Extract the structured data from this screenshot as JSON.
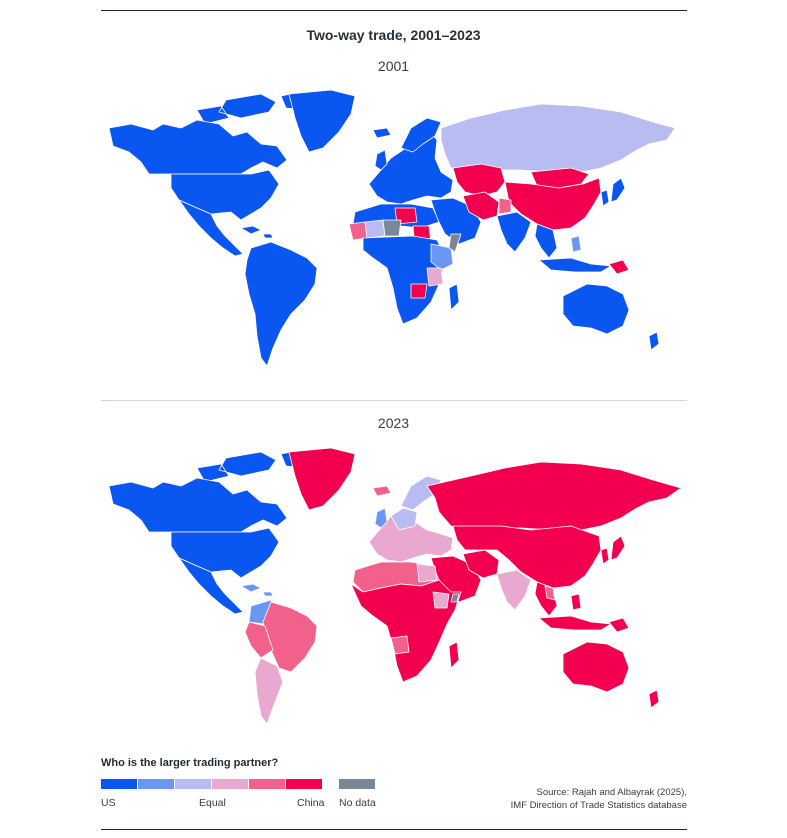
{
  "title": "Two-way trade, 2001–2023",
  "maps": [
    {
      "year": "2001"
    },
    {
      "year": "2023"
    }
  ],
  "legend": {
    "title": "Who is the larger trading partner?",
    "colors": [
      "#0a56f0",
      "#6b96f2",
      "#b9bcf0",
      "#e8a8d0",
      "#f2608c",
      "#f2004f"
    ],
    "no_data_color": "#788896",
    "labels": {
      "left": "US",
      "middle": "Equal",
      "right": "China",
      "no_data": "No data"
    }
  },
  "source": {
    "line1": "Source: Rajah and Albayrak (2025),",
    "line2": "IMF Direction of Trade Statistics database"
  }
}
